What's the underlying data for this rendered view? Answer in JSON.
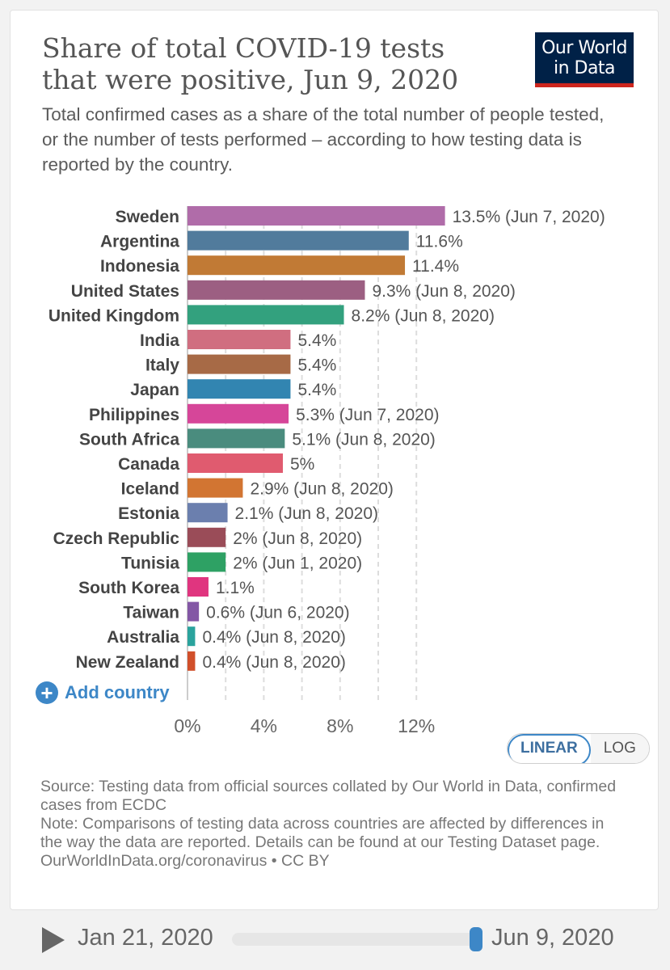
{
  "logo": {
    "line1": "Our World",
    "line2": "in Data"
  },
  "controls": {
    "add_country": "Add country",
    "linear": "LINEAR",
    "log": "LOG"
  },
  "footer": {
    "source": "Source: Testing data from official sources collated by Our World in Data, confirmed cases from ECDC",
    "note": "Note: Comparisons of testing data across countries are affected by differences in the way the data are reported. Details can be found at our Testing Dataset page.",
    "credit": "OurWorldInData.org/coronavirus • CC BY"
  },
  "timeline": {
    "start": "Jan 21, 2020",
    "end": "Jun 9, 2020"
  },
  "chart_data": {
    "type": "bar",
    "orientation": "horizontal",
    "title": "Share of total COVID-19 tests that were positive, Jun 9, 2020",
    "subtitle": "Total confirmed cases as a share of the total number of people tested, or the number of tests performed – according to how testing data is reported by the country.",
    "xlim": [
      0,
      13.5
    ],
    "xticks": [
      0,
      4,
      8,
      12
    ],
    "xtick_labels": [
      "0%",
      "4%",
      "8%",
      "12%"
    ],
    "grid": "vertical dashed",
    "categories": [
      "Sweden",
      "Argentina",
      "Indonesia",
      "United States",
      "United Kingdom",
      "India",
      "Italy",
      "Japan",
      "Philippines",
      "South Africa",
      "Canada",
      "Iceland",
      "Estonia",
      "Czech Republic",
      "Tunisia",
      "South Korea",
      "Taiwan",
      "Australia",
      "New Zealand"
    ],
    "values": [
      13.5,
      11.6,
      11.4,
      9.3,
      8.2,
      5.4,
      5.4,
      5.4,
      5.3,
      5.1,
      5,
      2.9,
      2.1,
      2,
      2,
      1.1,
      0.6,
      0.4,
      0.4
    ],
    "labels": [
      "13.5% (Jun 7, 2020)",
      "11.6%",
      "11.4%",
      "9.3% (Jun 8, 2020)",
      "8.2% (Jun 8, 2020)",
      "5.4%",
      "5.4%",
      "5.4%",
      "5.3% (Jun 7, 2020)",
      "5.1% (Jun 8, 2020)",
      "5%",
      "2.9% (Jun 8, 2020)",
      "2.1% (Jun 8, 2020)",
      "2% (Jun 8, 2020)",
      "2% (Jun 1, 2020)",
      "1.1%",
      "0.6% (Jun 6, 2020)",
      "0.4% (Jun 8, 2020)",
      "0.4% (Jun 8, 2020)"
    ],
    "colors": [
      "#b06ca9",
      "#517b9c",
      "#c17a35",
      "#9c5f82",
      "#33a17e",
      "#d06e80",
      "#a76a46",
      "#3285b1",
      "#d64699",
      "#4a8c7e",
      "#e05b6f",
      "#d27532",
      "#6b7fae",
      "#9a4c58",
      "#2ea164",
      "#e0357f",
      "#8357a5",
      "#2aa39d",
      "#d14f2a"
    ]
  }
}
